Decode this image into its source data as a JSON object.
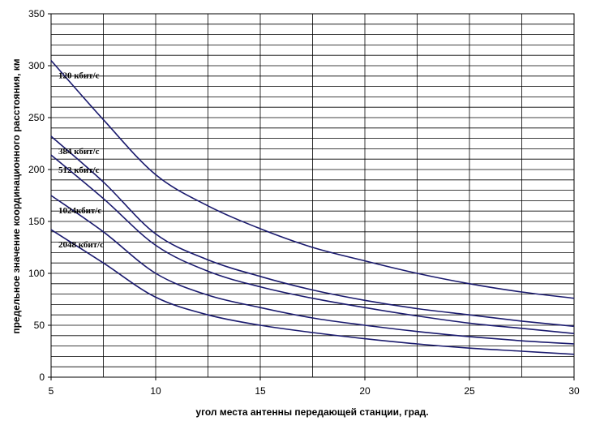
{
  "chart_data": {
    "type": "line",
    "xlabel": "угол места антенны передающей станции, град.",
    "ylabel": "предельное значение координационного расстояния, км",
    "xlim": [
      5,
      30
    ],
    "ylim": [
      0,
      350
    ],
    "x_ticks": [
      5,
      10,
      15,
      20,
      25,
      30
    ],
    "y_ticks": [
      0,
      50,
      100,
      150,
      200,
      250,
      300,
      350
    ],
    "grid": true,
    "line_color": "#1a1a6e",
    "series": [
      {
        "name": "120 кбит/с",
        "x": [
          5,
          7.5,
          10,
          12.5,
          15,
          17.5,
          20,
          22.5,
          25,
          27.5,
          30
        ],
        "values": [
          305,
          248,
          195,
          165,
          143,
          125,
          112,
          100,
          90,
          82,
          76
        ]
      },
      {
        "name": "384 кбит/с",
        "x": [
          5,
          7.5,
          10,
          12.5,
          15,
          17.5,
          20,
          22.5,
          25,
          27.5,
          30
        ],
        "values": [
          232,
          188,
          138,
          113,
          97,
          84,
          74,
          66,
          60,
          54,
          49
        ]
      },
      {
        "name": "512 кбит/с",
        "x": [
          5,
          7.5,
          10,
          12.5,
          15,
          17.5,
          20,
          22.5,
          25,
          27.5,
          30
        ],
        "values": [
          214,
          172,
          127,
          102,
          87,
          76,
          67,
          59,
          52,
          47,
          42
        ]
      },
      {
        "name": "1024кбит/с",
        "x": [
          5,
          7.5,
          10,
          12.5,
          15,
          17.5,
          20,
          22.5,
          25,
          27.5,
          30
        ],
        "values": [
          175,
          140,
          100,
          79,
          67,
          57,
          50,
          44,
          39,
          35,
          32
        ]
      },
      {
        "name": "2048 кбит/с",
        "x": [
          5,
          7.5,
          10,
          12.5,
          15,
          17.5,
          20,
          22.5,
          25,
          27.5,
          30
        ],
        "values": [
          142,
          110,
          77,
          60,
          50,
          43,
          37,
          32,
          28,
          25,
          22
        ]
      }
    ]
  }
}
